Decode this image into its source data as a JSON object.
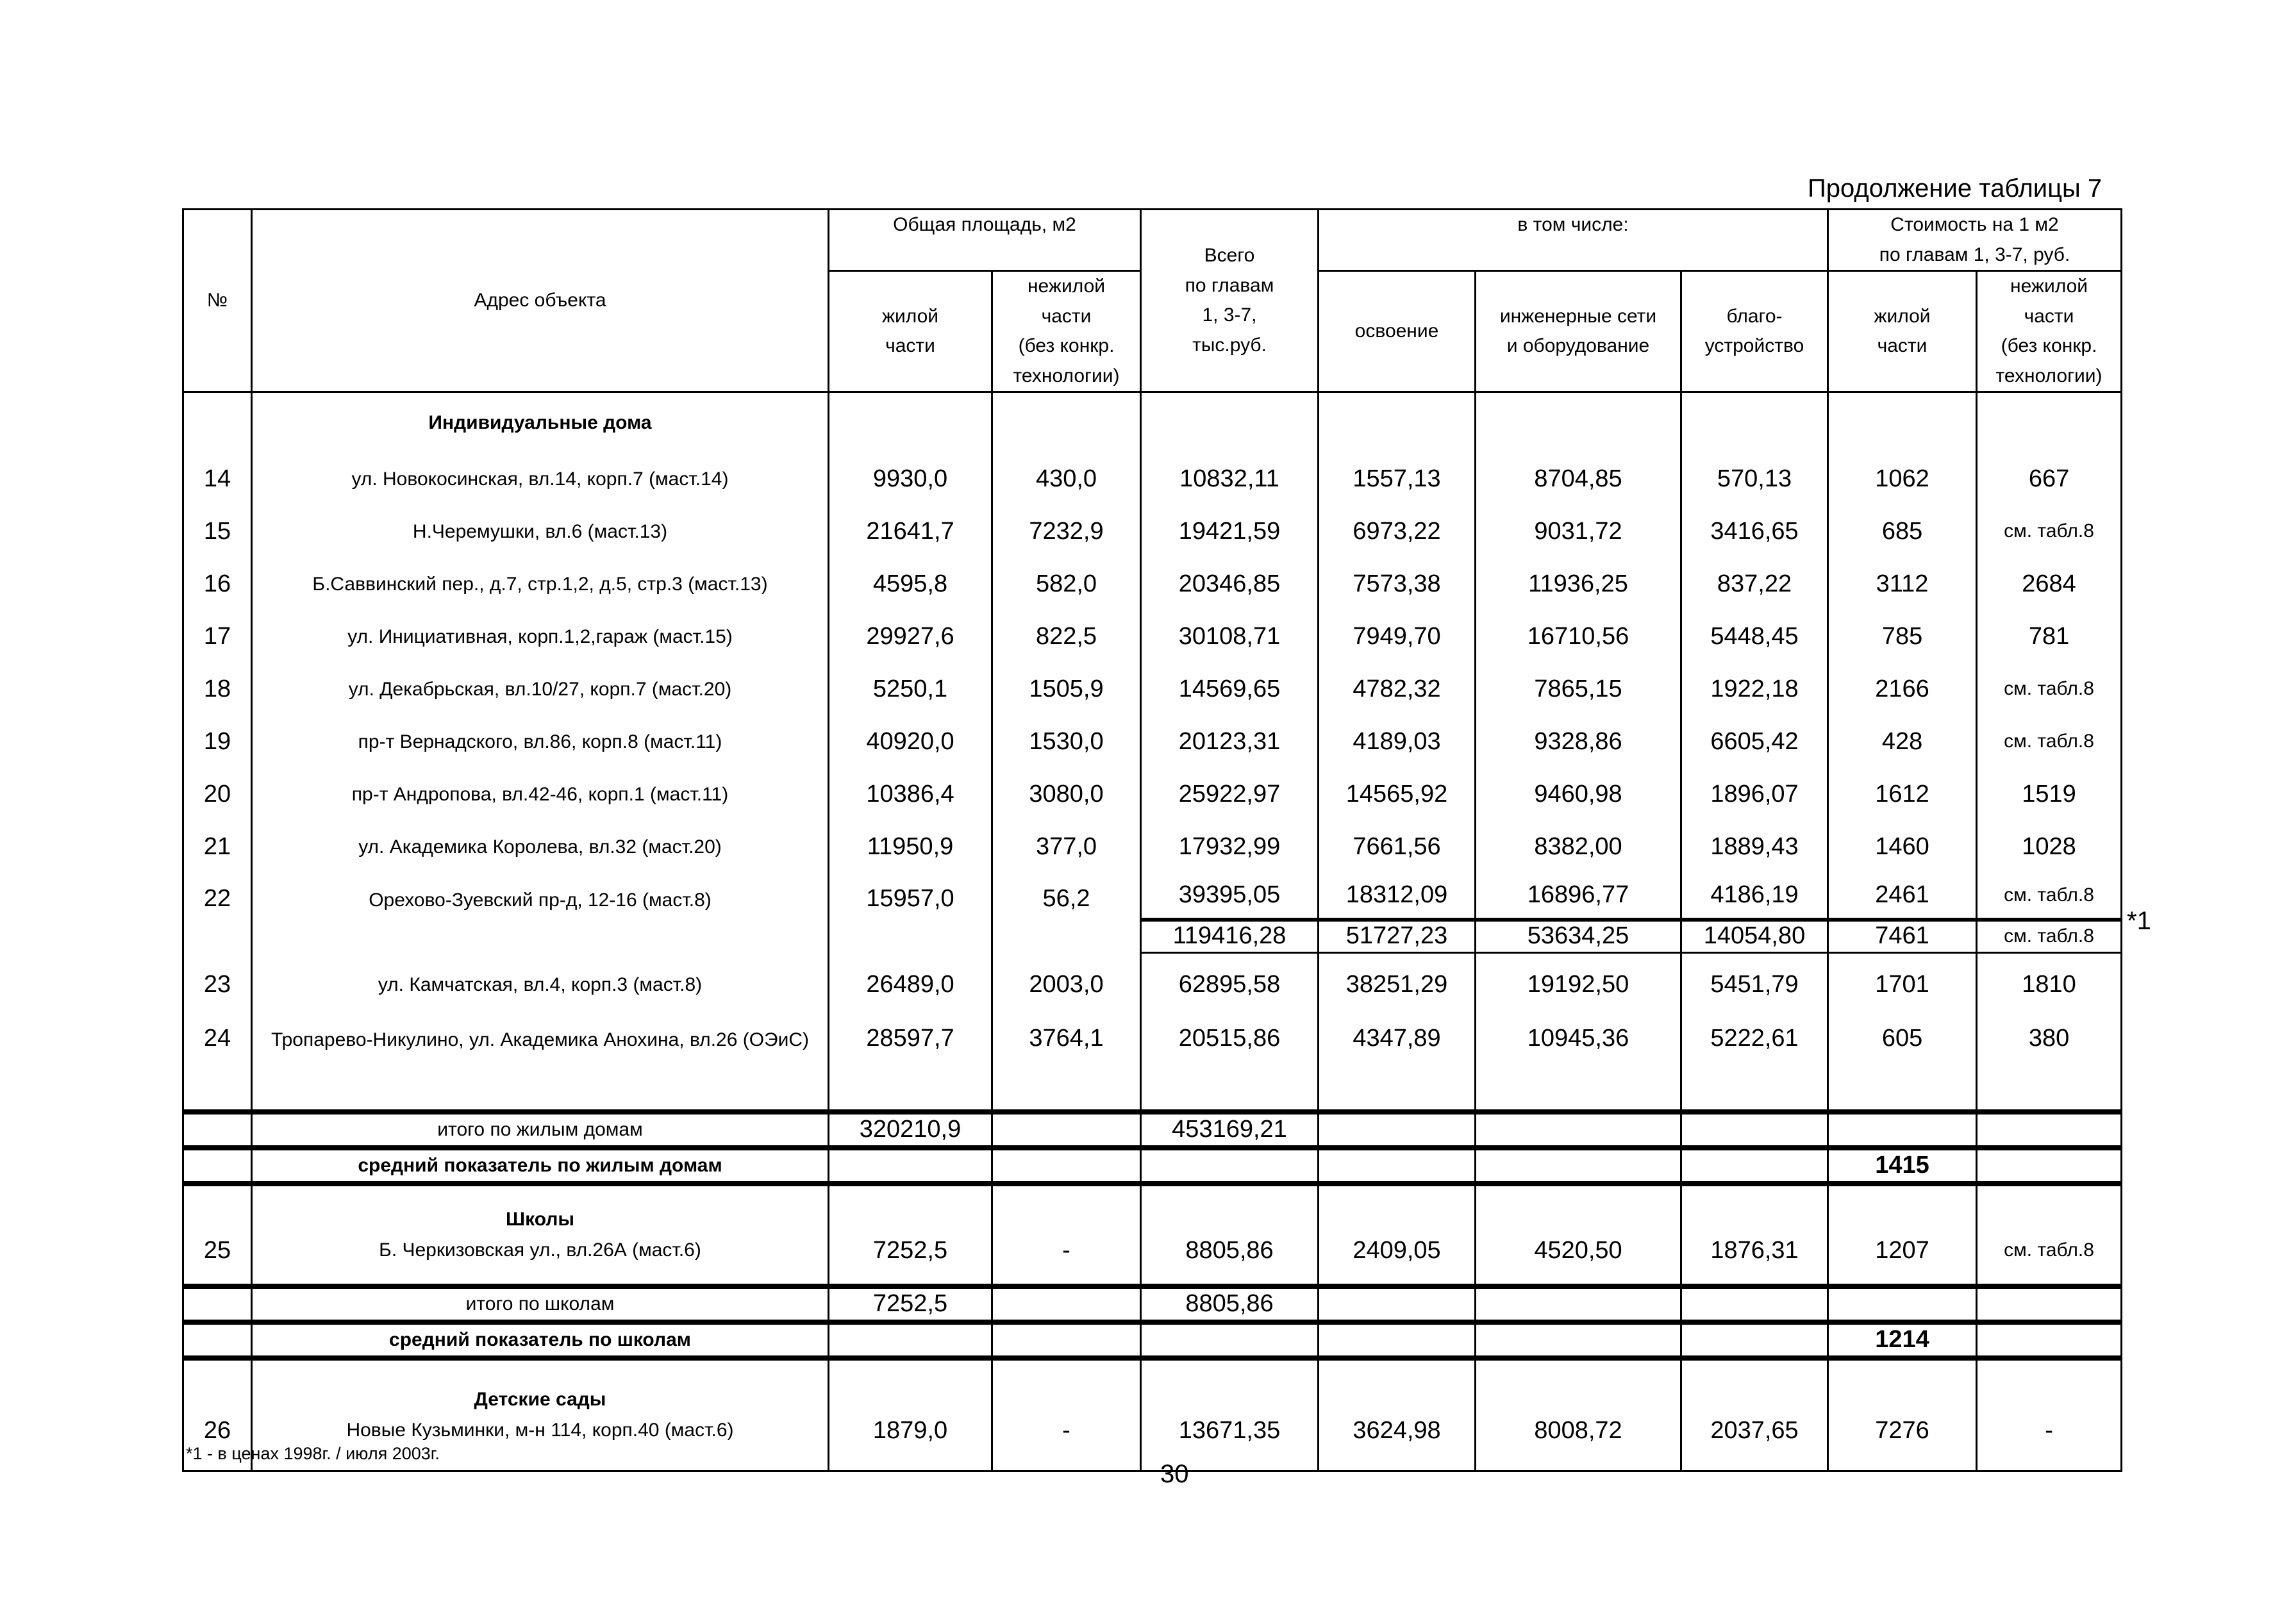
{
  "caption": "Продолжение таблицы 7",
  "header": {
    "no": "№",
    "address": "Адрес объекта",
    "area": "Общая площадь, м2",
    "area_living": [
      "жилой",
      "части"
    ],
    "area_nonliving": [
      "нежилой",
      "части",
      "(без конкр.",
      "технологии)"
    ],
    "total": [
      "Всего",
      "по главам",
      "1, 3-7,",
      "тыс.руб."
    ],
    "incl": "в том числе:",
    "incl_dev": "освоение",
    "incl_eng": [
      "инженерные сети",
      "и оборудование"
    ],
    "incl_land": [
      "благо-",
      "устройство"
    ],
    "cost": [
      "Стоимость на 1 м2",
      "по главам 1, 3-7, руб."
    ],
    "cost_living": [
      "жилой",
      "части"
    ],
    "cost_nonliving": [
      "нежилой",
      "части",
      "(без конкр.",
      "технологии)"
    ]
  },
  "sections": [
    {
      "title": "Индивидуальные дома",
      "rows": [
        {
          "no": "14",
          "address": "ул. Новокосинская, вл.14, корп.7 (маст.14)",
          "living": "9930,0",
          "nonliving": "430,0",
          "total": "10832,11",
          "dev": "1557,13",
          "eng": "8704,85",
          "land": "570,13",
          "cost_living": "1062",
          "cost_nonliving": "667"
        },
        {
          "no": "15",
          "address": "Н.Черемушки, вл.6 (маст.13)",
          "living": "21641,7",
          "nonliving": "7232,9",
          "total": "19421,59",
          "dev": "6973,22",
          "eng": "9031,72",
          "land": "3416,65",
          "cost_living": "685",
          "cost_nonliving": "см. табл.8"
        },
        {
          "no": "16",
          "address": "Б.Саввинский пер., д.7, стр.1,2, д.5, стр.3 (маст.13)",
          "living": "4595,8",
          "nonliving": "582,0",
          "total": "20346,85",
          "dev": "7573,38",
          "eng": "11936,25",
          "land": "837,22",
          "cost_living": "3112",
          "cost_nonliving": "2684"
        },
        {
          "no": "17",
          "address": "ул. Инициативная, корп.1,2,гараж (маст.15)",
          "living": "29927,6",
          "nonliving": "822,5",
          "total": "30108,71",
          "dev": "7949,70",
          "eng": "16710,56",
          "land": "5448,45",
          "cost_living": "785",
          "cost_nonliving": "781"
        },
        {
          "no": "18",
          "address": "ул. Декабрьская, вл.10/27, корп.7 (маст.20)",
          "living": "5250,1",
          "nonliving": "1505,9",
          "total": "14569,65",
          "dev": "4782,32",
          "eng": "7865,15",
          "land": "1922,18",
          "cost_living": "2166",
          "cost_nonliving": "см. табл.8"
        },
        {
          "no": "19",
          "address": "пр-т Вернадского, вл.86, корп.8 (маст.11)",
          "living": "40920,0",
          "nonliving": "1530,0",
          "total": "20123,31",
          "dev": "4189,03",
          "eng": "9328,86",
          "land": "6605,42",
          "cost_living": "428",
          "cost_nonliving": "см. табл.8"
        },
        {
          "no": "20",
          "address": "пр-т Андропова, вл.42-46, корп.1 (маст.11)",
          "living": "10386,4",
          "nonliving": "3080,0",
          "total": "25922,97",
          "dev": "14565,92",
          "eng": "9460,98",
          "land": "1896,07",
          "cost_living": "1612",
          "cost_nonliving": "1519"
        },
        {
          "no": "21",
          "address": "ул. Академика Королева, вл.32 (маст.20)",
          "living": "11950,9",
          "nonliving": "377,0",
          "total": "17932,99",
          "dev": "7661,56",
          "eng": "8382,00",
          "land": "1889,43",
          "cost_living": "1460",
          "cost_nonliving": "1028"
        },
        {
          "no": "22",
          "address": "Орехово-Зуевский пр-д, 12-16 (маст.8)",
          "living": "15957,0",
          "nonliving": "56,2",
          "total": "39395,05",
          "dev": "18312,09",
          "eng": "16896,77",
          "land": "4186,19",
          "cost_living": "2461",
          "cost_nonliving": "см. табл.8",
          "alt": {
            "total": "119416,28",
            "dev": "51727,23",
            "eng": "53634,25",
            "land": "14054,80",
            "cost_living": "7461",
            "cost_nonliving": "см. табл.8",
            "mark": "*1"
          }
        },
        {
          "no": "23",
          "address": "ул. Камчатская, вл.4, корп.3 (маст.8)",
          "living": "26489,0",
          "nonliving": "2003,0",
          "total": "62895,58",
          "dev": "38251,29",
          "eng": "19192,50",
          "land": "5451,79",
          "cost_living": "1701",
          "cost_nonliving": "1810"
        },
        {
          "no": "24",
          "address": "Тропарево-Никулино, ул. Академика Анохина, вл.26 (ОЭиС)",
          "living": "28597,7",
          "nonliving": "3764,1",
          "total": "20515,86",
          "dev": "4347,89",
          "eng": "10945,36",
          "land": "5222,61",
          "cost_living": "605",
          "cost_nonliving": "380"
        }
      ],
      "subtotal": {
        "label": "итого по жилым домам",
        "living": "320210,9",
        "total": "453169,21"
      },
      "average": {
        "label": "средний показатель по жилым домам",
        "value": "1415"
      }
    },
    {
      "title": "Школы",
      "rows": [
        {
          "no": "25",
          "address": "Б. Черкизовская ул., вл.26А (маст.6)",
          "living": "7252,5",
          "nonliving": "-",
          "total": "8805,86",
          "dev": "2409,05",
          "eng": "4520,50",
          "land": "1876,31",
          "cost_living": "1207",
          "cost_nonliving": "см. табл.8"
        }
      ],
      "subtotal": {
        "label": "итого по школам",
        "living": "7252,5",
        "total": "8805,86"
      },
      "average": {
        "label": "средний показатель по школам",
        "value": "1214"
      }
    },
    {
      "title": "Детские сады",
      "rows": [
        {
          "no": "26",
          "address": "Новые Кузьминки, м-н 114, корп.40 (маст.6)",
          "living": "1879,0",
          "nonliving": "-",
          "total": "13671,35",
          "dev": "3624,98",
          "eng": "8008,72",
          "land": "2037,65",
          "cost_living": "7276",
          "cost_nonliving": "-"
        }
      ]
    }
  ],
  "footnote": "*1 - в ценах 1998г. / июля 2003г.",
  "page_number": "30"
}
